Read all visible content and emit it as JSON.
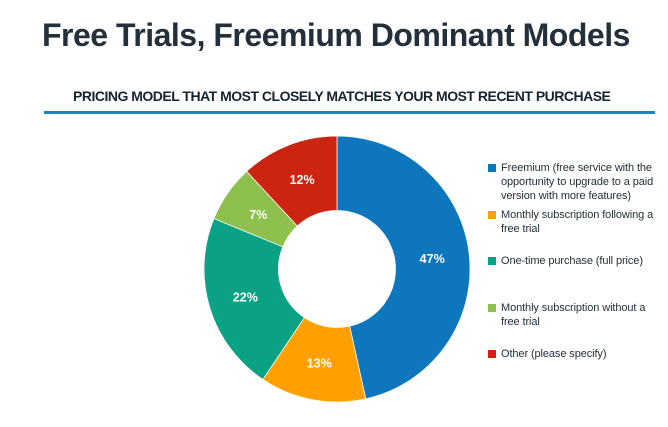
{
  "page": {
    "title": "Free Trials, Freemium Dominant Models",
    "subtitle": "PRICING MODEL THAT MOST CLOSELY MATCHES YOUR MOST RECENT PURCHASE"
  },
  "colors": {
    "background": "#FFFFFF",
    "title": "#232F3B",
    "subtitle": "#16242F",
    "divider": "#1E82C0",
    "legend_text": "#223039",
    "slice_label": "#FFFFFF"
  },
  "chart_data": {
    "type": "pie",
    "subtype": "donut",
    "title": "PRICING MODEL THAT MOST CLOSELY MATCHES YOUR MOST RECENT PURCHASE",
    "unit": "%",
    "start_position": "top",
    "direction": "clockwise",
    "inner_radius_ratio": 0.44,
    "legend_position": "right",
    "slices": [
      {
        "label": "Freemium (free service with the opportunity to upgrade to a paid version with more features)",
        "value": 47,
        "data_label": "47%",
        "color": "#0E76BD"
      },
      {
        "label": "Monthly subscription following a free trial",
        "value": 13,
        "data_label": "13%",
        "color": "#FFA000"
      },
      {
        "label": "One-time purchase (full price)",
        "value": 22,
        "data_label": "22%",
        "color": "#0AA184"
      },
      {
        "label": "Monthly subscription without a free trial",
        "value": 7,
        "data_label": "7%",
        "color": "#8DC04D"
      },
      {
        "label": "Other (please specify)",
        "value": 12,
        "data_label": "12%",
        "color": "#CB2512"
      }
    ]
  }
}
